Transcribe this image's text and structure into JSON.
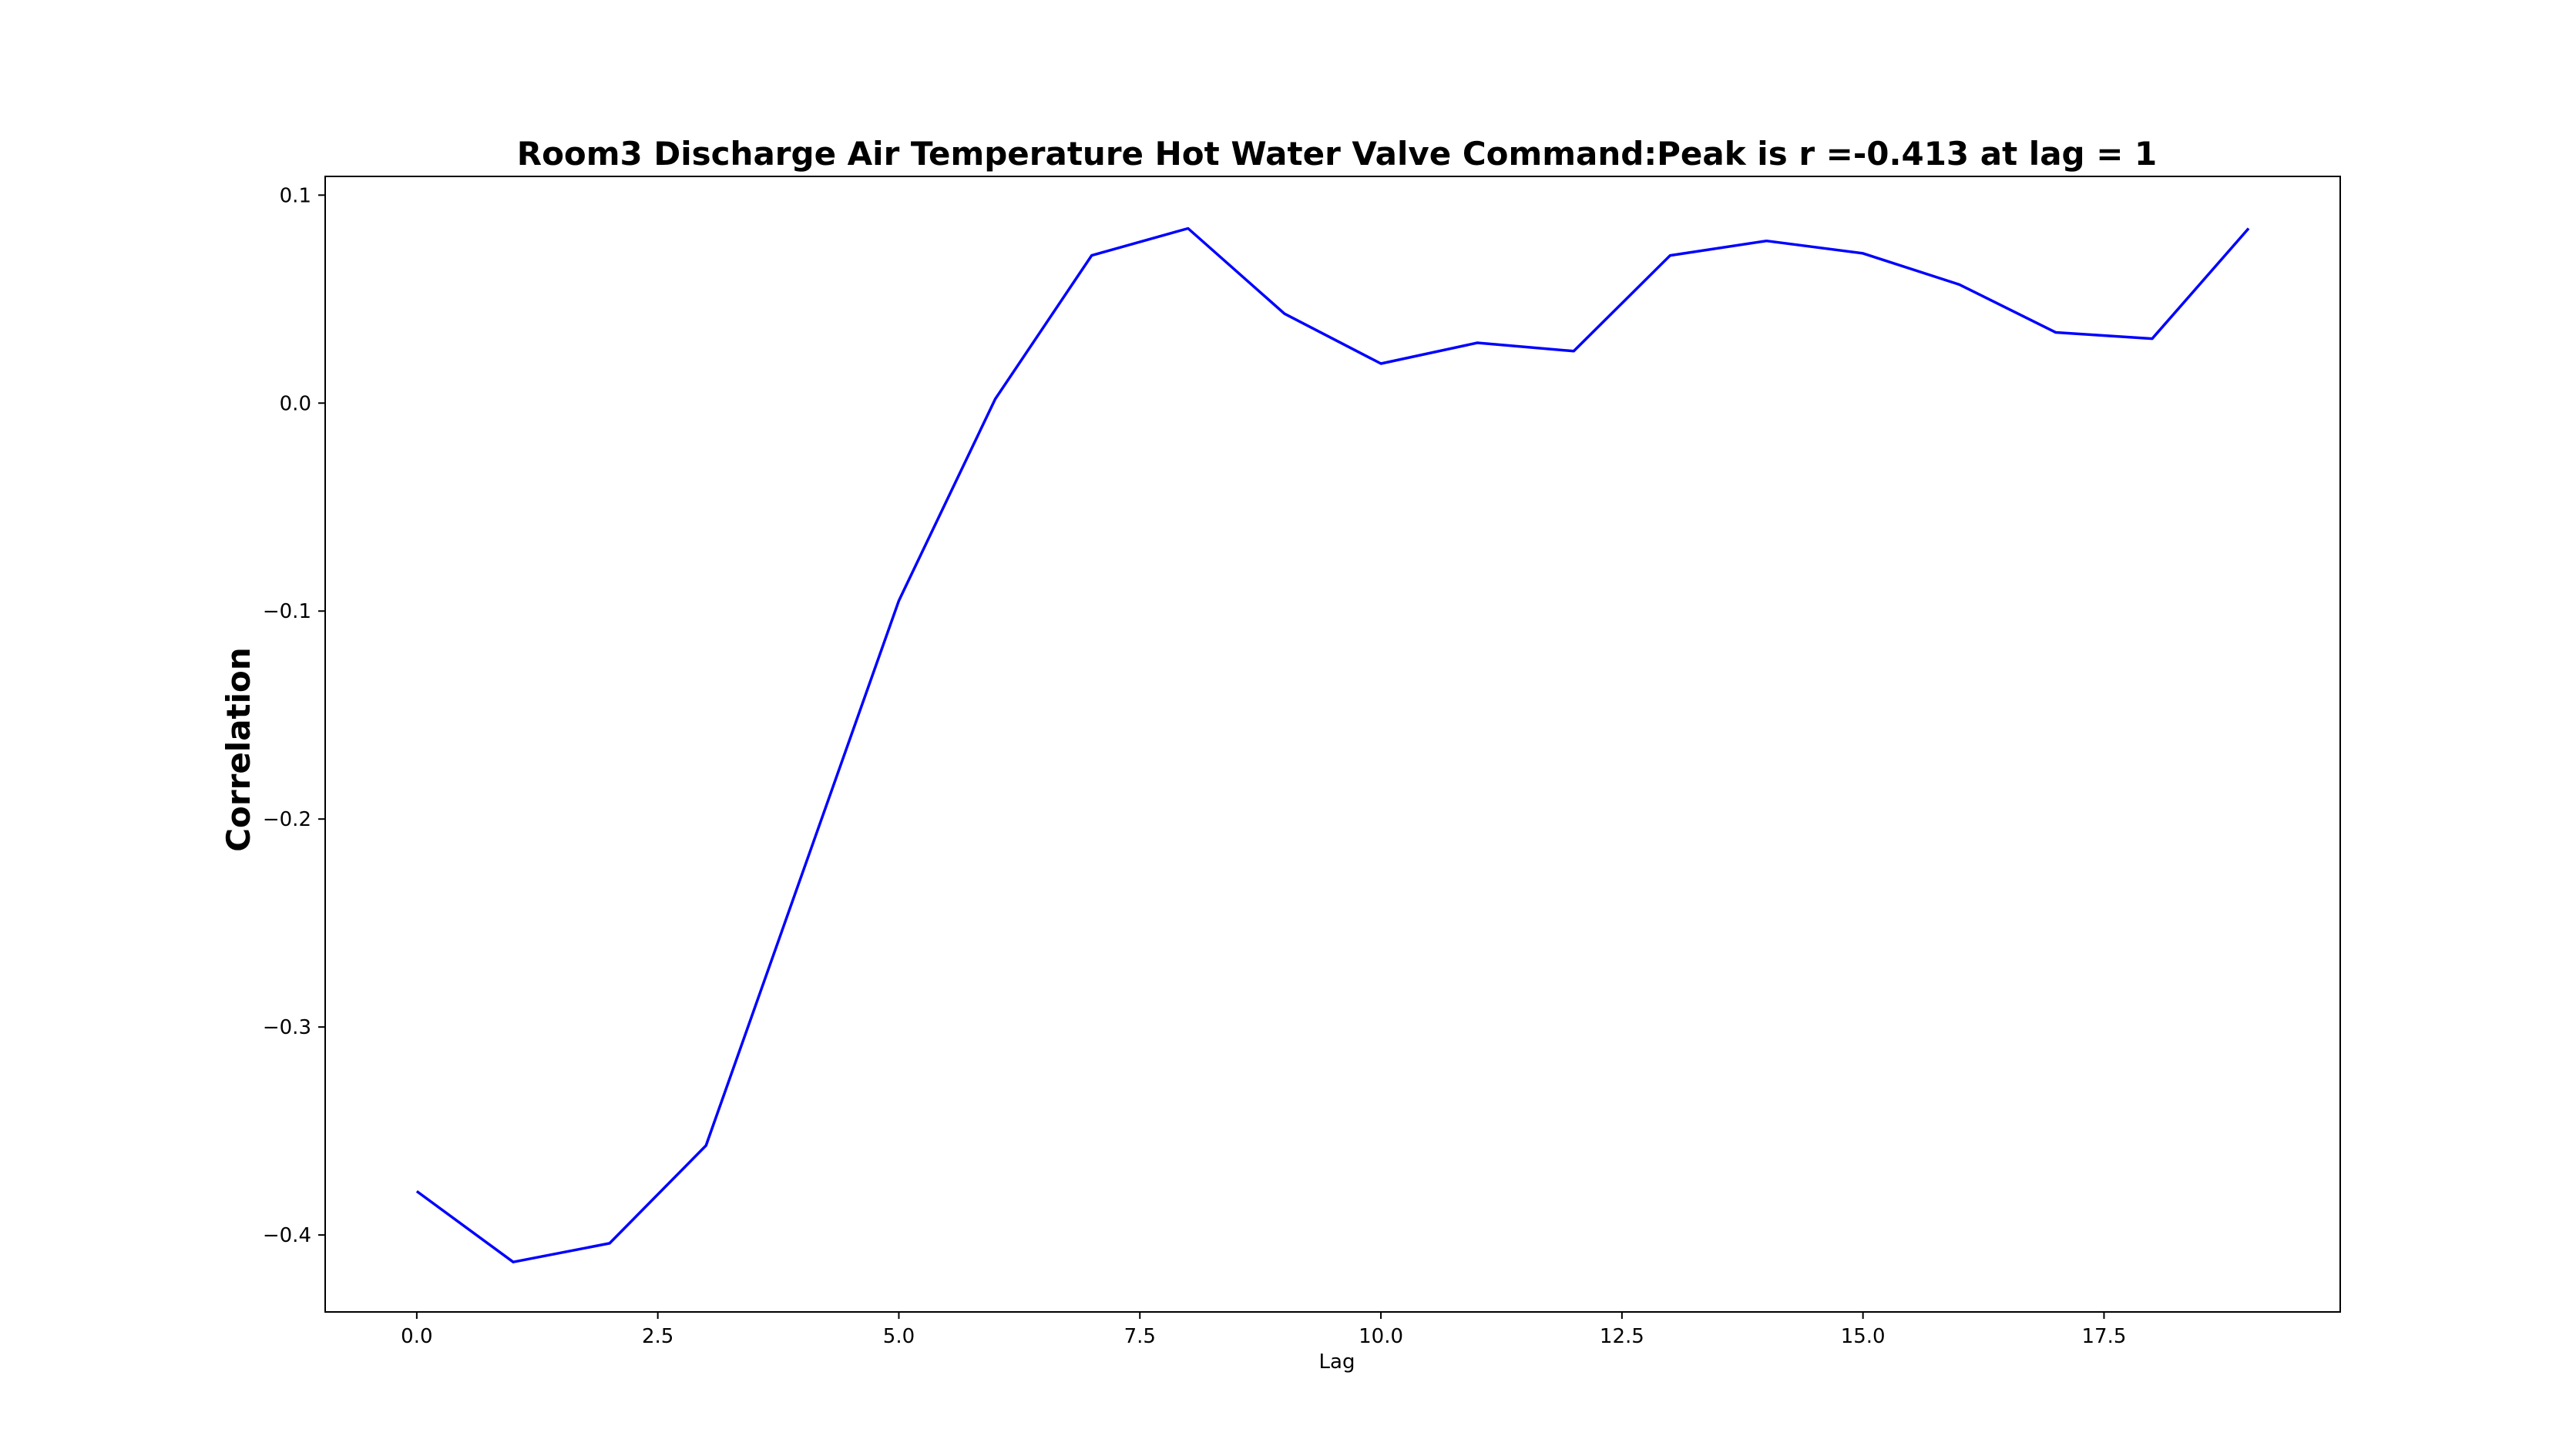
{
  "chart_data": {
    "type": "line",
    "title": "Room3 Discharge Air Temperature Hot Water Valve Command:Peak is r =-0.413 at lag = 1",
    "xlabel": "Lag",
    "ylabel": "Correlation",
    "xlim": [
      -0.95,
      19.95
    ],
    "ylim": [
      -0.437,
      0.109
    ],
    "x_ticks": [
      {
        "value": 0.0,
        "label": "0.0"
      },
      {
        "value": 2.5,
        "label": "2.5"
      },
      {
        "value": 5.0,
        "label": "5.0"
      },
      {
        "value": 7.5,
        "label": "7.5"
      },
      {
        "value": 10.0,
        "label": "10.0"
      },
      {
        "value": 12.5,
        "label": "12.5"
      },
      {
        "value": 15.0,
        "label": "15.0"
      },
      {
        "value": 17.5,
        "label": "17.5"
      }
    ],
    "y_ticks": [
      {
        "value": 0.1,
        "label": "0.1"
      },
      {
        "value": 0.0,
        "label": "0.0"
      },
      {
        "value": -0.1,
        "label": "−0.1"
      },
      {
        "value": -0.2,
        "label": "−0.2"
      },
      {
        "value": -0.3,
        "label": "−0.3"
      },
      {
        "value": -0.4,
        "label": "−0.4"
      }
    ],
    "grid": false,
    "series": [
      {
        "color": "#0000ff",
        "x": [
          0,
          1,
          2,
          3,
          4,
          5,
          6,
          7,
          8,
          9,
          10,
          11,
          12,
          13,
          14,
          15,
          16,
          17,
          18,
          19
        ],
        "y": [
          -0.379,
          -0.413,
          -0.404,
          -0.357,
          -0.226,
          -0.095,
          0.002,
          0.071,
          0.084,
          0.043,
          0.019,
          0.029,
          0.025,
          0.071,
          0.078,
          0.072,
          0.057,
          0.034,
          0.031,
          0.084
        ]
      }
    ]
  }
}
